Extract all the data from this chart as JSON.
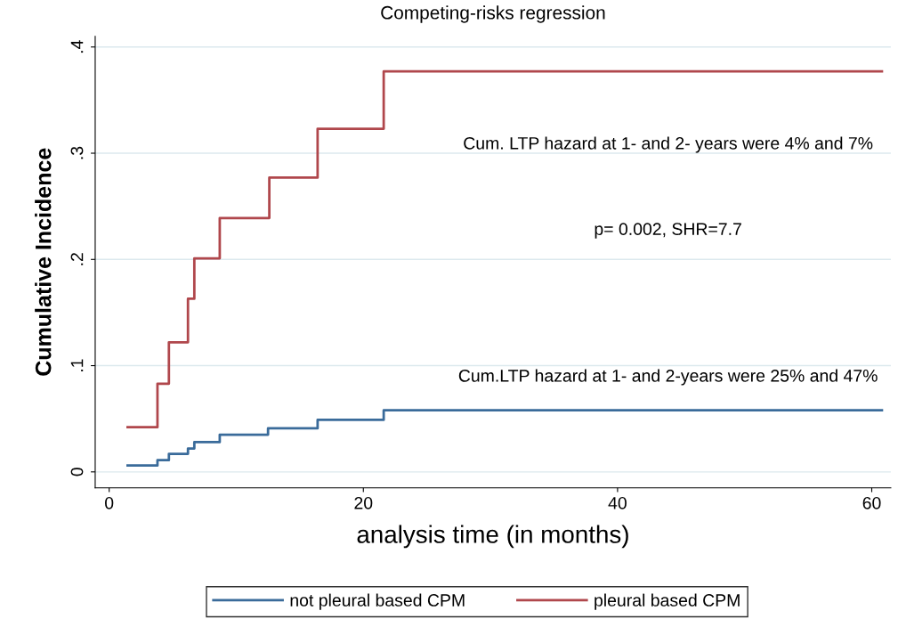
{
  "chart_data": {
    "type": "step",
    "title": "Competing-risks regression",
    "xlabel": "analysis time (in months)",
    "ylabel": "Cumulative Incidence",
    "series": [
      {
        "name": "not pleural based CPM",
        "color": "#3a6b9a",
        "x": [
          1.45,
          3.8,
          4.7,
          6.2,
          6.7,
          8.7,
          12.5,
          16.4,
          21.6,
          60.8
        ],
        "values": [
          0.006,
          0.011,
          0.017,
          0.022,
          0.028,
          0.035,
          0.041,
          0.049,
          0.058,
          0.058
        ]
      },
      {
        "name": "pleural based CPM",
        "color": "#b0474c",
        "x": [
          1.45,
          3.8,
          4.7,
          6.2,
          6.7,
          8.7,
          12.6,
          16.4,
          21.6,
          60.8
        ],
        "values": [
          0.042,
          0.083,
          0.122,
          0.163,
          0.201,
          0.239,
          0.277,
          0.323,
          0.377,
          0.377
        ]
      }
    ],
    "xlim": [
      -1.1,
      61.5
    ],
    "ylim": [
      -0.015,
      0.41
    ],
    "xticks": [
      0,
      20,
      40,
      60
    ],
    "yticks": [
      0,
      {
        "value": 0.1,
        "label": ".1"
      },
      {
        "value": 0.2,
        "label": ".2"
      },
      {
        "value": 0.3,
        "label": ".3"
      },
      {
        "value": 0.4,
        "label": ".4"
      }
    ],
    "annotations": [
      "Cum. LTP hazard at 1- and 2- years were 4% and 7%",
      "p= 0.002, SHR=7.7",
      "Cum.LTP hazard at 1- and 2-years were 25% and 47%"
    ],
    "grid": "y",
    "legend": "bottom",
    "line_style": "solid",
    "marker": "none"
  }
}
